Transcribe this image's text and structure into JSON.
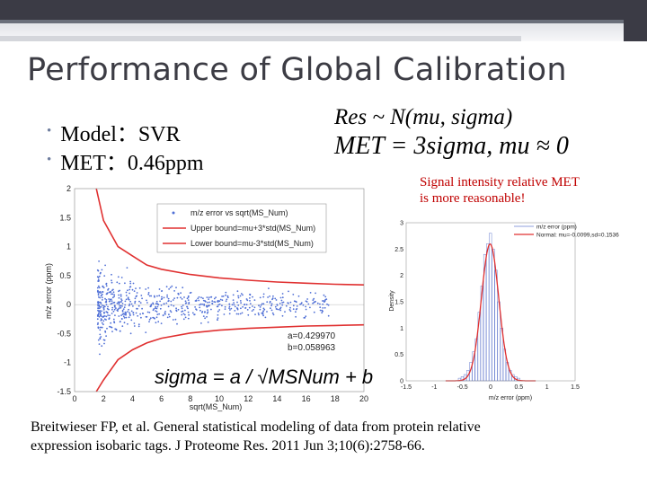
{
  "slide": {
    "title": "Performance of Global Calibration",
    "bullets": [
      {
        "label": "Model：SVR"
      },
      {
        "label": "MET：0.46ppm"
      }
    ],
    "formula_line1": "Res ~ N(mu, sigma)",
    "formula_line2": "MET = 3sigma, mu ≈ 0",
    "note_line1": "Signal intensity relative MET",
    "note_line2": "is more reasonable!",
    "reference_line1": "Breitwieser FP, et al. General statistical modeling of data from protein relative",
    "reference_line2": "expression isobaric tags. J Proteome Res. 2011 Jun 3;10(6):2758-66.",
    "accent_color": "#c00000",
    "bullet_color": "#6e7d9e"
  },
  "chart_data": [
    {
      "type": "scatter",
      "xlabel": "sqrt(MS_Num)",
      "ylabel": "m/z error (ppm)",
      "xlim": [
        0,
        20
      ],
      "ylim": [
        -1.5,
        2
      ],
      "xticks": [
        "0",
        "2",
        "4",
        "6",
        "8",
        "10",
        "12",
        "14",
        "16",
        "18",
        "20"
      ],
      "yticks": [
        "2",
        "1.5",
        "1",
        "0.5",
        "0",
        "-0.5",
        "-1",
        "-1.5"
      ],
      "legend_position": "top-right",
      "legend": [
        "m/z error vs sqrt(MS_Num)",
        "Upper bound=mu+3*std(MS_Num)",
        "Lower bound=mu-3*std(MS_Num)"
      ],
      "fit_params": [
        "a=0.429970",
        "b=0.058963"
      ],
      "fit_formula": "sigma = a / √MSNum + b",
      "series": [
        {
          "name": "m/z error vs sqrt(MS_Num)",
          "color": "#4f6fd6",
          "style": "points"
        },
        {
          "name": "Upper bound=mu+3*std(MS_Num)",
          "color": "#e03030",
          "style": "line"
        },
        {
          "name": "Lower bound=mu-3*std(MS_Num)",
          "color": "#e03030",
          "style": "line"
        }
      ],
      "bounds": {
        "x": [
          1.5,
          2,
          3,
          4,
          5,
          6,
          8,
          10,
          12,
          14,
          16,
          18,
          20
        ],
        "upper": [
          2.0,
          1.45,
          1.0,
          0.84,
          0.68,
          0.61,
          0.52,
          0.46,
          0.42,
          0.39,
          0.37,
          0.35,
          0.34
        ],
        "lower": [
          -1.5,
          -1.3,
          -0.95,
          -0.78,
          -0.66,
          -0.58,
          -0.49,
          -0.44,
          -0.41,
          -0.39,
          -0.37,
          -0.36,
          -0.35
        ]
      }
    },
    {
      "type": "bar",
      "xlabel": "m/z error (ppm)",
      "ylabel": "Density",
      "xlim": [
        -1.5,
        1.5
      ],
      "ylim": [
        0,
        3
      ],
      "xticks": [
        "-1.5",
        "-1",
        "-0.5",
        "0",
        "0.5",
        "1",
        "1.5"
      ],
      "yticks": [
        "3",
        "2.5",
        "2",
        "1.5",
        "1",
        "0.5",
        "0"
      ],
      "legend_position": "top-right",
      "legend": [
        "m/z error (ppm)",
        "Normal: mu=-0.0099,sd=0.1536"
      ],
      "normal_fit": {
        "mu": -0.0099,
        "sd": 0.1536
      },
      "series": [
        {
          "name": "m/z error (ppm)",
          "color": "#6a7fd0",
          "style": "bars"
        },
        {
          "name": "Normal: mu=-0.0099,sd=0.1536",
          "color": "#e03030",
          "style": "line"
        }
      ],
      "bins": {
        "x": [
          -0.55,
          -0.5,
          -0.45,
          -0.4,
          -0.35,
          -0.3,
          -0.25,
          -0.2,
          -0.15,
          -0.1,
          -0.05,
          0.0,
          0.05,
          0.1,
          0.15,
          0.2,
          0.25,
          0.3,
          0.35,
          0.4,
          0.45,
          0.5
        ],
        "density": [
          0.05,
          0.08,
          0.12,
          0.2,
          0.35,
          0.55,
          0.8,
          1.3,
          1.8,
          2.4,
          2.6,
          2.8,
          2.5,
          2.1,
          1.5,
          1.0,
          0.6,
          0.35,
          0.2,
          0.12,
          0.08,
          0.05
        ]
      }
    }
  ]
}
